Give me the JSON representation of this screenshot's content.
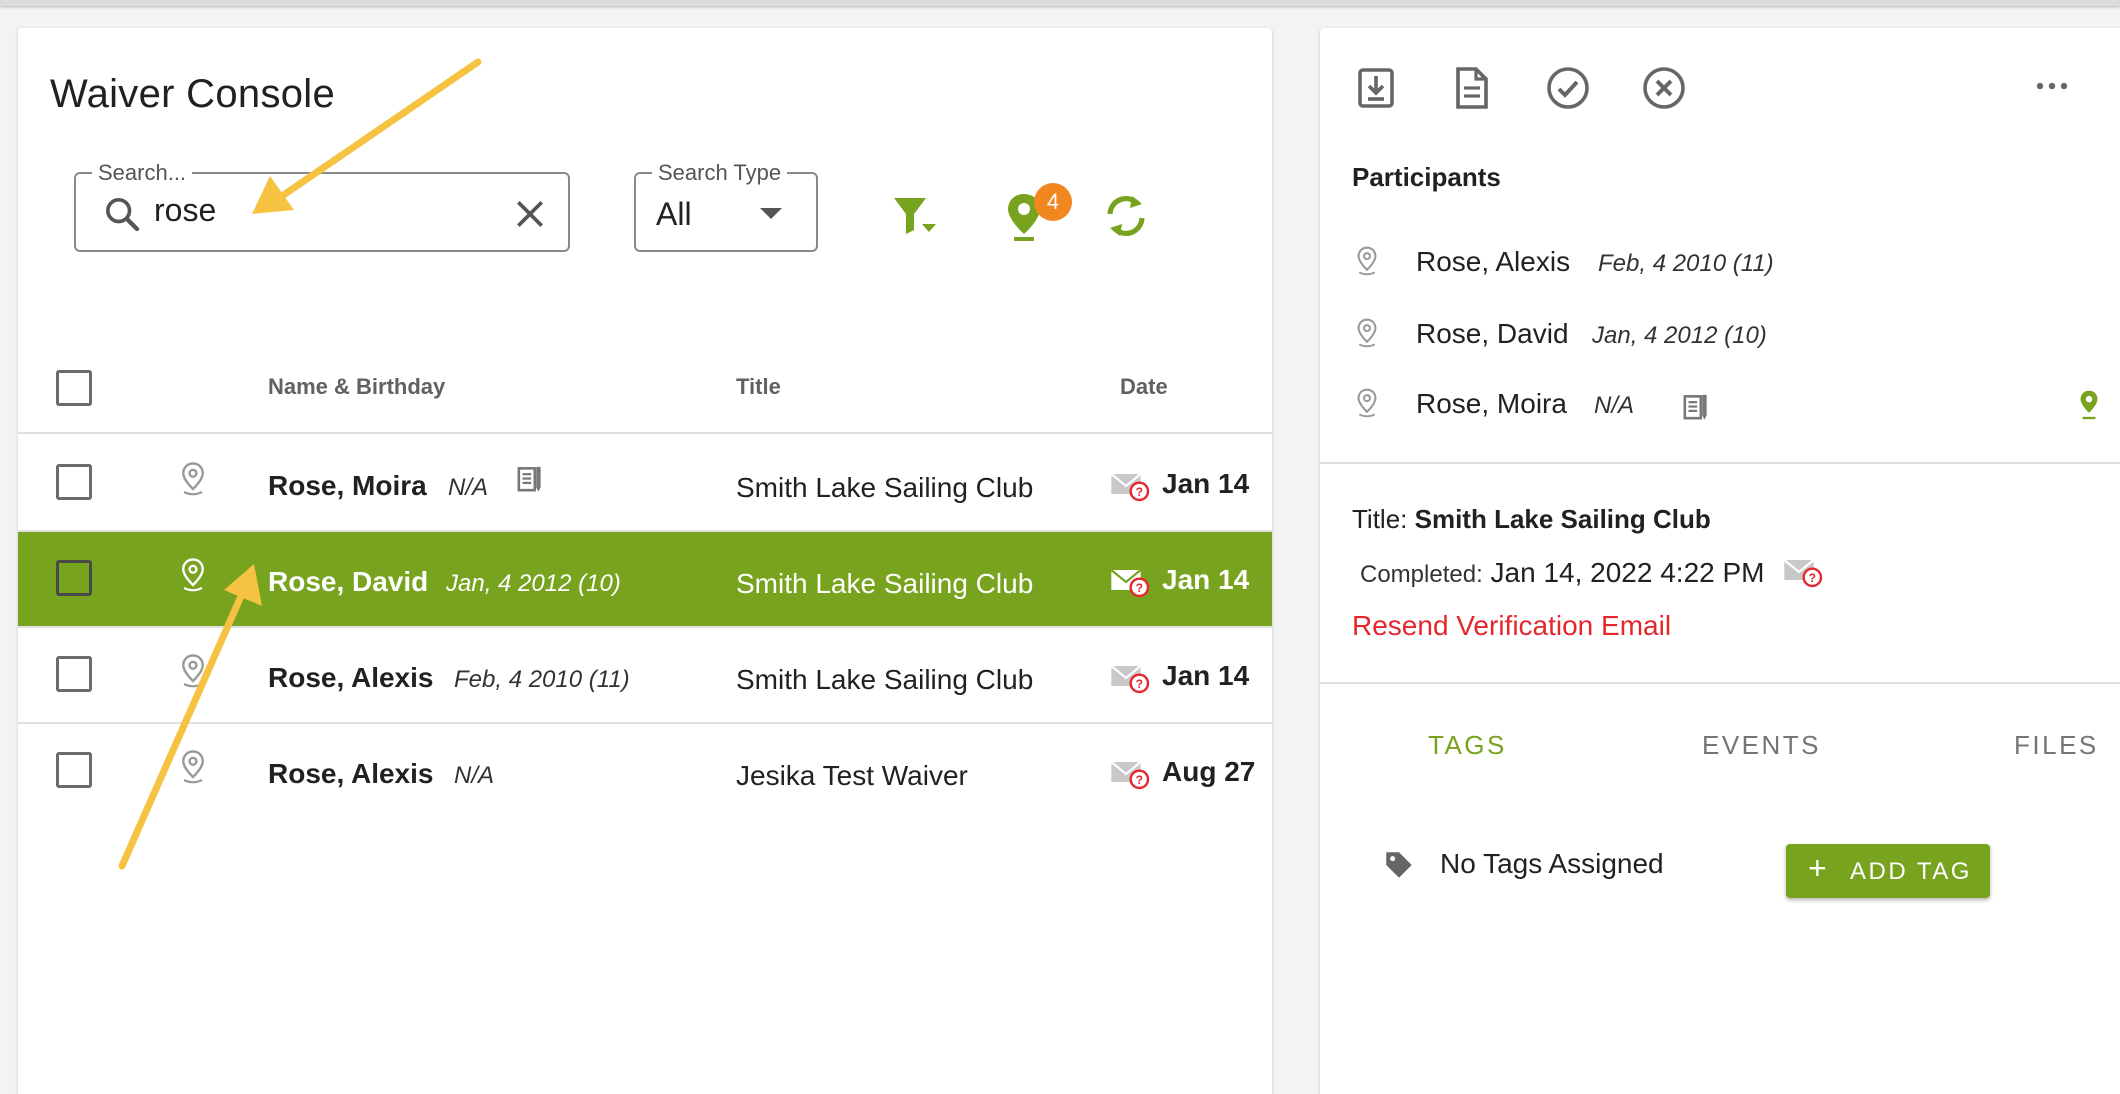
{
  "console": {
    "title": "Waiver Console",
    "search": {
      "label": "Search...",
      "value": "rose"
    },
    "search_type": {
      "label": "Search Type",
      "value": "All"
    },
    "location_badge_count": "4"
  },
  "table": {
    "headers": {
      "name": "Name & Birthday",
      "title": "Title",
      "date": "Date"
    },
    "rows": [
      {
        "name": "Rose, Moira",
        "birthday": "N/A",
        "title": "Smith Lake Sailing Club",
        "date": "Jan 14"
      },
      {
        "name": "Rose, David",
        "birthday": "Jan, 4 2012 (10)",
        "title": "Smith Lake Sailing Club",
        "date": "Jan 14"
      },
      {
        "name": "Rose, Alexis",
        "birthday": "Feb, 4 2010 (11)",
        "title": "Smith Lake Sailing Club",
        "date": "Jan 14"
      },
      {
        "name": "Rose, Alexis",
        "birthday": "N/A",
        "title": "Jesika Test Waiver",
        "date": "Aug 27"
      }
    ]
  },
  "details": {
    "participants_heading": "Participants",
    "participants": [
      {
        "name": "Rose, Alexis",
        "birthday": "Feb, 4 2010 (11)"
      },
      {
        "name": "Rose, David",
        "birthday": "Jan, 4 2012 (10)"
      },
      {
        "name": "Rose, Moira",
        "birthday": "N/A"
      }
    ],
    "title_label": "Title:",
    "title_value": "Smith Lake Sailing Club",
    "completed_label": "Completed:",
    "completed_value": "Jan 14, 2022 4:22 PM",
    "resend_link": "Resend Verification Email",
    "tabs": [
      "TAGS",
      "EVENTS",
      "FILES"
    ],
    "no_tags": "No Tags Assigned",
    "add_tag_label": "ADD TAG",
    "add_tag_plus": "+"
  },
  "colors": {
    "accent_green": "#77a31e",
    "badge_orange": "#f0871f",
    "link_red": "#e5262c",
    "arrow_yellow": "#f5c242"
  },
  "icons": {
    "toolbar": [
      "filter-icon",
      "location-pin-icon",
      "refresh-icon"
    ],
    "detail_toolbar": [
      "download-icon",
      "document-icon",
      "check-circle-icon",
      "cancel-circle-icon",
      "more-horizontal-icon"
    ]
  }
}
